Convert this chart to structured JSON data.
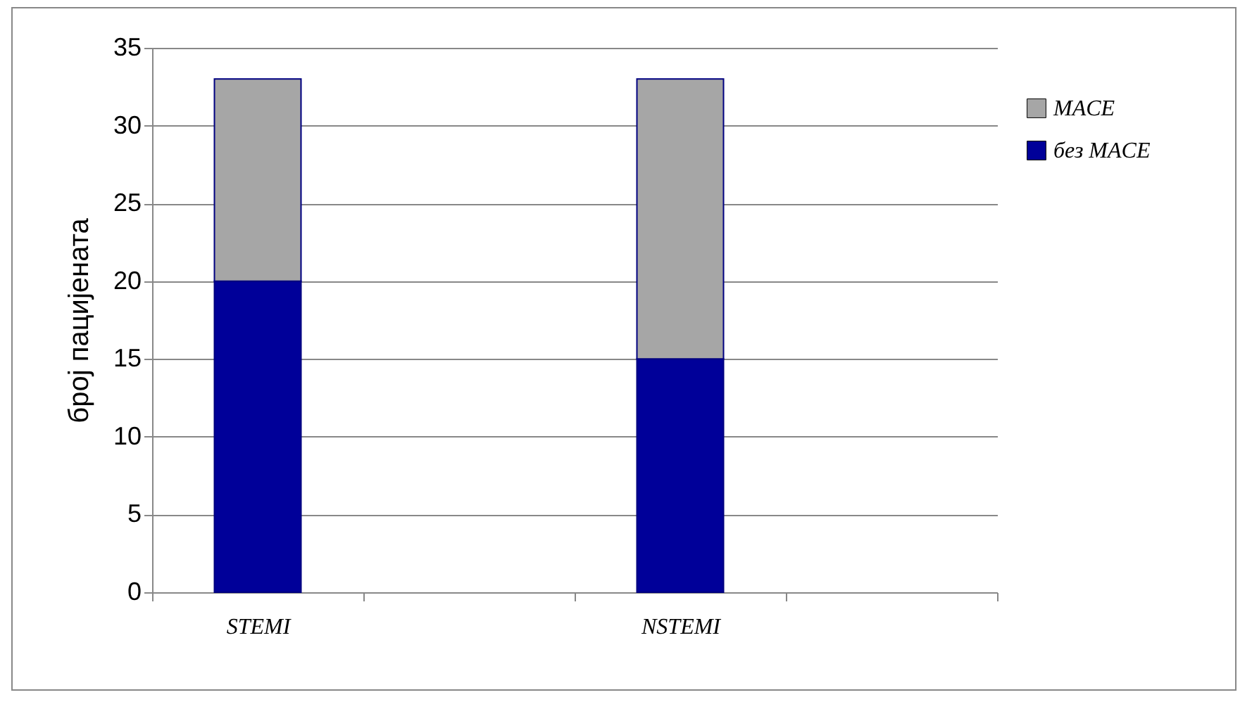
{
  "chart_data": {
    "type": "bar",
    "stacked": true,
    "categories": [
      "STEMI",
      null,
      "NSTEMI",
      null
    ],
    "ylabel": "број пацијената",
    "ylim": [
      0,
      35
    ],
    "yticks": [
      0,
      5,
      10,
      15,
      20,
      25,
      30,
      35
    ],
    "grid": "y",
    "legend": "right",
    "series": [
      {
        "name": "без MACE",
        "color": "#000099",
        "values": [
          20,
          null,
          15,
          null
        ]
      },
      {
        "name": "MACE",
        "color": "#a6a6a6",
        "values": [
          13,
          null,
          18,
          null
        ]
      }
    ]
  }
}
